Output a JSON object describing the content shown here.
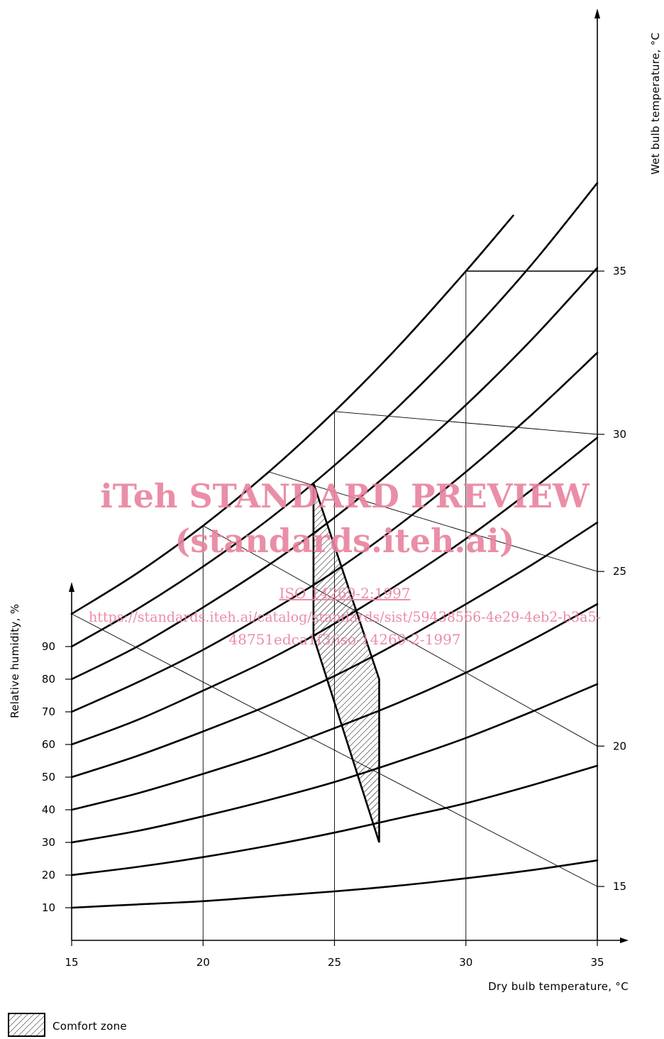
{
  "chart_data": {
    "type": "line",
    "subtype": "psychrometric-chart",
    "xlabel": "Dry bulb temperature, °C",
    "ylabel_left": "Relative humidity, %",
    "ylabel_right": "Wet bulb temperature, °C",
    "xlim": [
      15,
      35
    ],
    "x_ticks": [
      "15",
      "20",
      "25",
      "30",
      "35"
    ],
    "x_tick_values": [
      15,
      20,
      25,
      30,
      35
    ],
    "rh_ticks": [
      "10",
      "20",
      "30",
      "40",
      "50",
      "60",
      "70",
      "80",
      "90"
    ],
    "wb_ticks": [
      "15",
      "20",
      "25",
      "30",
      "35"
    ],
    "wb_tick_values": [
      15,
      20,
      25,
      30,
      35
    ],
    "x_grid": true,
    "legend": {
      "label": "Comfort zone",
      "placement": "bottom-left"
    },
    "curves": [
      {
        "rh": 10,
        "x": [
          15,
          17.5,
          20,
          22.5,
          25,
          27.5,
          30,
          32.5,
          35
        ],
        "y": [
          10.0,
          11.0,
          12.0,
          13.5,
          15.0,
          16.8,
          19.0,
          21.5,
          24.5
        ]
      },
      {
        "rh": 20,
        "x": [
          15,
          17.5,
          20,
          22.5,
          25,
          27.5,
          30,
          32.5,
          35
        ],
        "y": [
          20.0,
          22.5,
          25.5,
          29.0,
          33.0,
          37.5,
          42.0,
          47.5,
          53.5
        ]
      },
      {
        "rh": 30,
        "x": [
          15,
          17.5,
          20,
          22.5,
          25,
          27.5,
          30,
          32.5,
          35
        ],
        "y": [
          30.0,
          33.5,
          38.0,
          43.0,
          48.5,
          55.0,
          62.0,
          70.0,
          78.5
        ]
      },
      {
        "rh": 40,
        "x": [
          15,
          17.5,
          20,
          22.5,
          25,
          27.5,
          30,
          32.5,
          35
        ],
        "y": [
          40.0,
          45.0,
          51.0,
          57.5,
          65.0,
          73.0,
          82.0,
          92.0,
          103.0
        ]
      },
      {
        "rh": 50,
        "x": [
          15,
          17.5,
          20,
          22.5,
          25,
          27.5,
          30,
          32.5,
          35
        ],
        "y": [
          50.0,
          56.5,
          64.0,
          72.0,
          81.0,
          91.5,
          103.0,
          115.0,
          128.0
        ]
      },
      {
        "rh": 60,
        "x": [
          15,
          17.5,
          20,
          22.5,
          25,
          27.5,
          30,
          32.5,
          35
        ],
        "y": [
          60.0,
          67.5,
          76.5,
          86.0,
          97.0,
          109.5,
          123.0,
          138.0,
          154.0
        ]
      },
      {
        "rh": 70,
        "x": [
          15,
          17.5,
          20,
          22.5,
          25,
          27.5,
          30,
          32.5,
          35
        ],
        "y": [
          70.0,
          79.0,
          89.0,
          100.5,
          113.0,
          127.5,
          143.5,
          161.0,
          180.0
        ]
      },
      {
        "rh": 80,
        "x": [
          15,
          17.5,
          20,
          22.5,
          25,
          27.5,
          30,
          32.5,
          35
        ],
        "y": [
          80.0,
          90.0,
          102.0,
          115.0,
          129.5,
          146.0,
          164.0,
          184.0,
          206.0
        ]
      },
      {
        "rh": 90,
        "x": [
          15,
          17.5,
          20,
          22.5,
          25,
          27.5,
          30,
          32.5,
          35
        ],
        "y": [
          90.0,
          101.5,
          114.5,
          129.0,
          145.5,
          164.0,
          184.5,
          207.0,
          232.0
        ]
      },
      {
        "rh": 100,
        "x": [
          15,
          17.5,
          20,
          22.5,
          25,
          27.5,
          30,
          31.8
        ],
        "y": [
          100.0,
          112.5,
          127.0,
          143.5,
          162.0,
          182.5,
          205.0,
          222.0
        ]
      }
    ],
    "wet_bulb_lines": [
      {
        "wb": 15,
        "x": [
          15,
          35
        ],
        "y": [
          100.0,
          16.5
        ]
      },
      {
        "wb": 20,
        "x": [
          20,
          35
        ],
        "y": [
          127.0,
          59.5
        ]
      },
      {
        "wb": 25,
        "x": [
          22.5,
          35
        ],
        "y": [
          143.5,
          113.0
        ]
      },
      {
        "wb": 30,
        "x": [
          25,
          35
        ],
        "y": [
          162.0,
          155.0
        ]
      },
      {
        "wb": 35,
        "x": [
          30,
          35
        ],
        "y": [
          205.0,
          205.0
        ]
      }
    ],
    "comfort_zone": {
      "x": [
        24.2,
        24.2,
        26.7,
        26.7
      ],
      "y": [
        93.0,
        140.0,
        80.0,
        30.0
      ]
    }
  },
  "watermark": {
    "line1": "iTeh STANDARD PREVIEW",
    "line2": "(standards.iteh.ai)",
    "line3": "ISO 14269-2:1997",
    "line4": "https://standards.iteh.ai/catalog/standards/sist/59438566-4e29-4eb2-b3a5-",
    "line5": "48751edca1f3/iso-14269-2-1997"
  },
  "colors": {
    "ink": "#000000",
    "watermark": "#e8829e"
  }
}
